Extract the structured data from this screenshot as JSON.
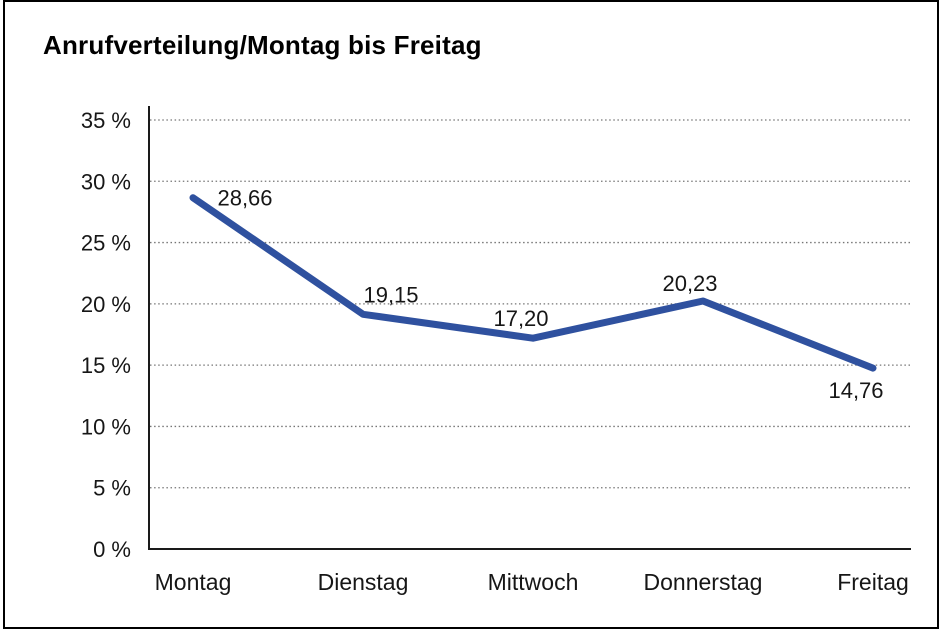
{
  "chart_data": {
    "type": "line",
    "title": "Anrufverteilung/Montag bis Freitag",
    "categories": [
      "Montag",
      "Dienstag",
      "Mittwoch",
      "Donnerstag",
      "Freitag"
    ],
    "series": [
      {
        "name": "Anrufverteilung",
        "values": [
          28.66,
          19.15,
          17.2,
          20.23,
          14.76
        ],
        "value_labels": [
          "28,66",
          "19,15",
          "17,20",
          "20,23",
          "14,76"
        ]
      }
    ],
    "xlabel": "",
    "ylabel": "",
    "ylim": [
      0,
      35
    ],
    "ytick_step": 5,
    "ytick_labels": [
      "0 %",
      "5 %",
      "10 %",
      "15 %",
      "20 %",
      "25 %",
      "30 %",
      "35 %"
    ],
    "grid": "horizontal-dotted",
    "legend": "none"
  },
  "colors": {
    "line": "#2f519f",
    "grid": "#757575",
    "axis": "#1a1a1a",
    "text": "#161616",
    "title": "#000000",
    "background": "#ffffff",
    "frame_border": "#000000"
  }
}
